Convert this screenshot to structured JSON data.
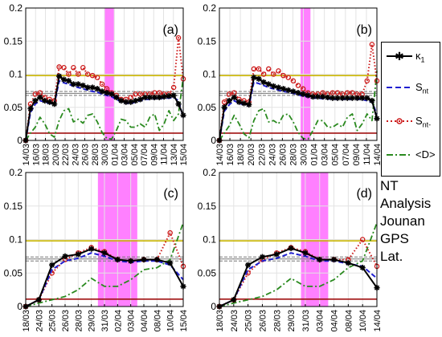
{
  "figure": {
    "side_text": [
      "NT",
      "Analysis",
      "Jounan",
      "GPS",
      "Lat."
    ]
  },
  "legend": [
    {
      "label_main": "κ",
      "label_sub": "1",
      "color": "#000000",
      "style": "solid-star"
    },
    {
      "label_main": "S",
      "label_sub": "nt",
      "color": "#1f1fd0",
      "style": "dashed"
    },
    {
      "label_main": "S",
      "label_sub": "nt-",
      "color": "#cc1a1a",
      "style": "dotted-circle"
    },
    {
      "label_main": "<D>",
      "label_sub": "",
      "color": "#2a8a1f",
      "style": "dashdot"
    }
  ],
  "colors": {
    "kappa": "#000000",
    "snt": "#1f1fd0",
    "sntminus": "#cc1a1a",
    "d": "#2a8a1f",
    "shade": "#ff80ff",
    "threshold_yellow": "#c8b400",
    "threshold_red": "#a01010",
    "ref_gray": "#777777"
  },
  "chart_data": [
    {
      "type": "line",
      "panel": "(a)",
      "ylim": [
        0,
        0.2
      ],
      "yticks": [
        "0",
        "0.05",
        "0.1",
        "0.15",
        "0.2"
      ],
      "xticks": [
        "14/03",
        "16/03",
        "18/03",
        "20/03",
        "22/03",
        "24/03",
        "26/03",
        "28/03",
        "30/03",
        "01/04",
        "03/04",
        "05/04",
        "07/04",
        "09/04",
        "11/04",
        "13/04",
        "15/04"
      ],
      "x": [
        0,
        1,
        2,
        3,
        4,
        5,
        6,
        7,
        8,
        9,
        10,
        11,
        12,
        13,
        14,
        15,
        16,
        17,
        18,
        19,
        20,
        21,
        22,
        23,
        24,
        25,
        26,
        27,
        28,
        29,
        30,
        31,
        32,
        33
      ],
      "shade": [
        16.5,
        18.5
      ],
      "hlines": {
        "yellow": 0.098,
        "gray_dashed": [
          0.074,
          0.068
        ],
        "gray_solid": 0.071,
        "red": 0.011
      },
      "series": [
        {
          "name": "κ1",
          "values": [
            0,
            0.048,
            0.06,
            0.065,
            0.06,
            0.058,
            0.055,
            0.097,
            0.092,
            0.09,
            0.085,
            0.085,
            0.083,
            0.08,
            0.08,
            0.078,
            0.074,
            0.072,
            0.07,
            0.065,
            0.06,
            0.058,
            0.058,
            0.06,
            0.062,
            0.065,
            0.065,
            0.065,
            0.065,
            0.066,
            0.067,
            0.068,
            0.055,
            0.038
          ]
        },
        {
          "name": "Snt",
          "values": [
            0,
            0.042,
            0.055,
            0.06,
            0.058,
            0.056,
            0.054,
            0.09,
            0.087,
            0.085,
            0.082,
            0.08,
            0.078,
            0.076,
            0.074,
            0.073,
            0.07,
            0.068,
            0.066,
            0.062,
            0.058,
            0.056,
            0.056,
            0.058,
            0.06,
            0.062,
            0.062,
            0.063,
            0.063,
            0.064,
            0.064,
            0.065,
            0.06,
            0.035
          ]
        },
        {
          "name": "Snt-",
          "values": [
            0,
            0.055,
            0.07,
            0.072,
            0.065,
            0.062,
            0.06,
            0.111,
            0.11,
            0.1,
            0.11,
            0.1,
            0.11,
            0.1,
            0.098,
            0.095,
            0.085,
            0.078,
            0.072,
            0.068,
            0.062,
            0.062,
            0.065,
            0.07,
            0.07,
            0.07,
            0.07,
            0.072,
            0.072,
            0.07,
            0.07,
            0.08,
            0.155,
            0.093
          ]
        },
        {
          "name": "<D>",
          "values": [
            0,
            0.011,
            0.02,
            0.035,
            0.025,
            0.01,
            0.005,
            0.03,
            0.045,
            0.048,
            0.028,
            0.032,
            0.026,
            0.038,
            0.04,
            0.028,
            0.012,
            0.003,
            0.002,
            0.015,
            0.032,
            0.03,
            0.02,
            0.02,
            0.025,
            0.02,
            0.035,
            0.04,
            0.015,
            0.025,
            0.045,
            0.03,
            0.04,
            0.095
          ]
        }
      ]
    },
    {
      "type": "line",
      "panel": "(b)",
      "ylim": [
        0,
        0.2
      ],
      "yticks": [
        "0",
        "0.05",
        "0.1",
        "0.15",
        "0.2"
      ],
      "xticks": [
        "14/03",
        "16/03",
        "18/03",
        "20/03",
        "22/03",
        "24/03",
        "26/03",
        "28/03",
        "30/03",
        "01/04",
        "03/04",
        "05/04",
        "07/04",
        "09/04",
        "11/04",
        "14/04"
      ],
      "x": [
        0,
        1,
        2,
        3,
        4,
        5,
        6,
        7,
        8,
        9,
        10,
        11,
        12,
        13,
        14,
        15,
        16,
        17,
        18,
        19,
        20,
        21,
        22,
        23,
        24,
        25,
        26,
        27,
        28,
        29,
        30,
        31,
        32
      ],
      "shade": [
        16.5,
        18.5
      ],
      "hlines": {
        "yellow": 0.098,
        "gray_dashed": [
          0.074,
          0.068
        ],
        "gray_solid": 0.071,
        "red": 0.011
      },
      "series": [
        {
          "name": "κ1",
          "values": [
            0,
            0.05,
            0.06,
            0.065,
            0.058,
            0.056,
            0.054,
            0.095,
            0.093,
            0.088,
            0.085,
            0.082,
            0.08,
            0.078,
            0.076,
            0.074,
            0.072,
            0.07,
            0.068,
            0.066,
            0.066,
            0.066,
            0.065,
            0.064,
            0.064,
            0.064,
            0.064,
            0.064,
            0.064,
            0.064,
            0.064,
            0.06,
            0.033
          ]
        },
        {
          "name": "Snt",
          "values": [
            0,
            0.044,
            0.054,
            0.06,
            0.056,
            0.054,
            0.052,
            0.088,
            0.086,
            0.083,
            0.08,
            0.078,
            0.076,
            0.074,
            0.073,
            0.071,
            0.069,
            0.067,
            0.066,
            0.064,
            0.064,
            0.063,
            0.063,
            0.062,
            0.062,
            0.062,
            0.062,
            0.062,
            0.062,
            0.062,
            0.06,
            0.058,
            0.04
          ]
        },
        {
          "name": "Snt-",
          "values": [
            0,
            0.058,
            0.07,
            0.072,
            0.062,
            0.06,
            0.058,
            0.108,
            0.108,
            0.1,
            0.108,
            0.1,
            0.105,
            0.098,
            0.095,
            0.09,
            0.083,
            0.078,
            0.072,
            0.07,
            0.07,
            0.072,
            0.07,
            0.072,
            0.072,
            0.07,
            0.072,
            0.072,
            0.07,
            0.07,
            0.09,
            0.145,
            0.09
          ]
        },
        {
          "name": "<D>",
          "values": [
            0,
            0.011,
            0.022,
            0.038,
            0.025,
            0.01,
            0.004,
            0.03,
            0.045,
            0.048,
            0.028,
            0.03,
            0.025,
            0.038,
            0.04,
            0.028,
            0.012,
            0.003,
            0.002,
            0.015,
            0.03,
            0.03,
            0.02,
            0.02,
            0.025,
            0.02,
            0.035,
            0.04,
            0.015,
            0.025,
            0.04,
            0.03,
            0.105
          ]
        }
      ]
    },
    {
      "type": "line",
      "panel": "(c)",
      "ylim": [
        0,
        0.2
      ],
      "yticks": [
        "0",
        "0.05",
        "0.1",
        "0.15",
        "0.2"
      ],
      "xticks": [
        "18/03",
        "24/03",
        "25/03",
        "26/03",
        "28/03",
        "29/03",
        "31/03",
        "02/04",
        "03/04",
        "04/04",
        "08/04",
        "10/04",
        "15/04"
      ],
      "x": [
        0,
        1,
        2,
        3,
        4,
        5,
        6,
        7,
        8,
        9,
        10,
        11,
        12
      ],
      "shade": [
        5.5,
        8.5
      ],
      "hlines": {
        "yellow": 0.098,
        "gray_dashed": [
          0.074,
          0.068
        ],
        "gray_solid": 0.071,
        "red": 0.011
      },
      "series": [
        {
          "name": "κ1",
          "values": [
            0,
            0.01,
            0.062,
            0.075,
            0.078,
            0.086,
            0.08,
            0.07,
            0.068,
            0.07,
            0.07,
            0.065,
            0.03
          ]
        },
        {
          "name": "Snt",
          "values": [
            0,
            0.01,
            0.055,
            0.068,
            0.072,
            0.08,
            0.075,
            0.068,
            0.066,
            0.068,
            0.068,
            0.062,
            0.04
          ]
        },
        {
          "name": "Snt-",
          "values": [
            0,
            0.01,
            0.05,
            0.07,
            0.08,
            0.088,
            0.082,
            0.07,
            0.068,
            0.07,
            0.07,
            0.11,
            0.06
          ]
        },
        {
          "name": "<D>",
          "values": [
            0,
            0.005,
            0.01,
            0.015,
            0.025,
            0.042,
            0.03,
            0.03,
            0.04,
            0.055,
            0.058,
            0.07,
            0.125
          ]
        }
      ]
    },
    {
      "type": "line",
      "panel": "(d)",
      "ylim": [
        0,
        0.2
      ],
      "yticks": [
        "0",
        "0.05",
        "0.1",
        "0.15",
        "0.2"
      ],
      "xticks": [
        "18/03",
        "24/03",
        "25/03",
        "26/03",
        "28/03",
        "29/03",
        "31/03",
        "03/04",
        "04/04",
        "08/04",
        "10/04",
        "14/04"
      ],
      "x": [
        0,
        1,
        2,
        3,
        4,
        5,
        6,
        7,
        8,
        9,
        10,
        11
      ],
      "shade": [
        5.7,
        7.6
      ],
      "hlines": {
        "yellow": 0.098,
        "gray_dashed": [
          0.074,
          0.068
        ],
        "gray_solid": 0.071,
        "red": 0.011
      },
      "series": [
        {
          "name": "κ1",
          "values": [
            0,
            0.01,
            0.062,
            0.074,
            0.078,
            0.087,
            0.08,
            0.07,
            0.07,
            0.065,
            0.058,
            0.028
          ]
        },
        {
          "name": "Snt",
          "values": [
            0,
            0.01,
            0.055,
            0.068,
            0.072,
            0.08,
            0.075,
            0.068,
            0.068,
            0.064,
            0.06,
            0.042
          ]
        },
        {
          "name": "Snt-",
          "values": [
            0,
            0.01,
            0.05,
            0.07,
            0.08,
            0.088,
            0.082,
            0.07,
            0.07,
            0.07,
            0.1,
            0.06
          ]
        },
        {
          "name": "<D>",
          "values": [
            0,
            0.005,
            0.01,
            0.015,
            0.025,
            0.042,
            0.03,
            0.03,
            0.04,
            0.058,
            0.068,
            0.125
          ]
        }
      ]
    }
  ]
}
